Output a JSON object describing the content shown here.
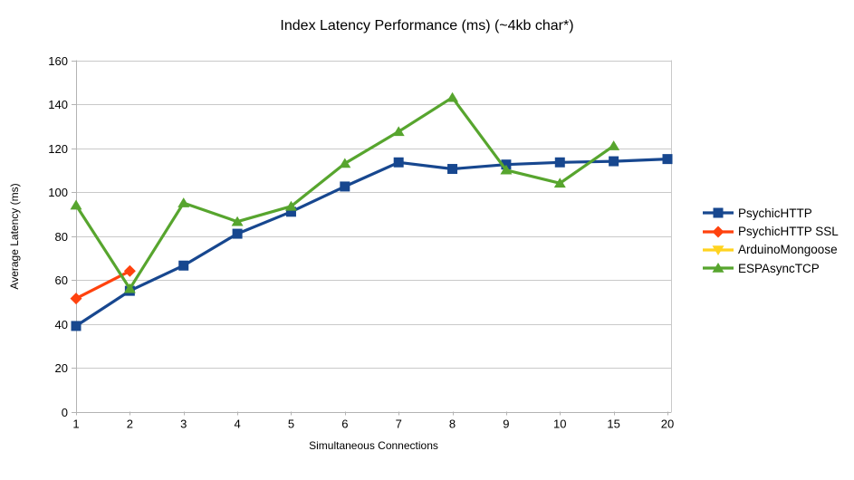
{
  "chart_data": {
    "type": "line",
    "title": "Index Latency Performance (ms) (~4kb char*)",
    "xlabel": "Simultaneous Connections",
    "ylabel": "Average Latency (ms)",
    "categories": [
      "1",
      "2",
      "3",
      "4",
      "5",
      "6",
      "7",
      "8",
      "9",
      "10",
      "15",
      "20"
    ],
    "y_ticks": [
      0,
      20,
      40,
      60,
      80,
      100,
      120,
      140,
      160
    ],
    "ylim": [
      0,
      160
    ],
    "grid": "horizontal",
    "legend_position": "right",
    "axis_color": "#b3b3b3",
    "grid_color": "#c9c9c9",
    "series": [
      {
        "name": "PsychicHTTP",
        "color": "#17478f",
        "marker": "square",
        "values": [
          39,
          55,
          66.5,
          81,
          91,
          102.5,
          113.5,
          110.5,
          112.5,
          113.5,
          114,
          115
        ]
      },
      {
        "name": "PsychicHTTP SSL",
        "color": "#ff420e",
        "marker": "diamond",
        "values": [
          51.5,
          64,
          null,
          null,
          null,
          null,
          null,
          null,
          null,
          null,
          null,
          null
        ]
      },
      {
        "name": "ArduinoMongoose",
        "color": "#ffd320",
        "marker": "triangle-down",
        "values": [
          null,
          null,
          null,
          null,
          null,
          null,
          null,
          null,
          null,
          null,
          null,
          null
        ]
      },
      {
        "name": "ESPAsyncTCP",
        "color": "#57a52e",
        "marker": "triangle-up",
        "values": [
          94,
          56,
          95,
          86.5,
          93.5,
          113,
          127.5,
          143,
          110,
          104,
          121,
          null
        ]
      }
    ]
  }
}
